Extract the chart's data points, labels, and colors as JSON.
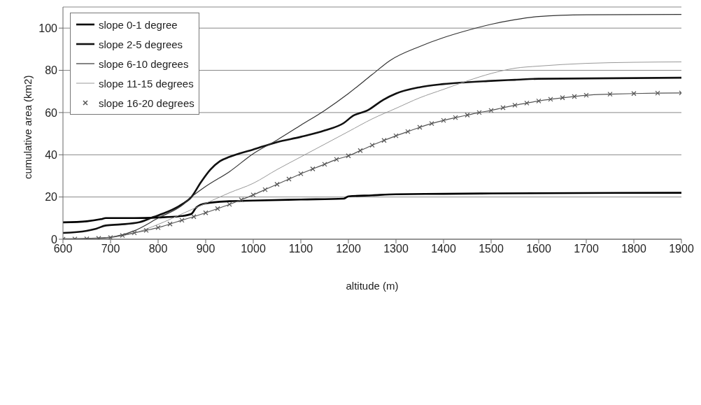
{
  "chart_data": {
    "type": "line",
    "xlabel": "altitude (m)",
    "ylabel": "cumulative area (km2)",
    "xlim": [
      600,
      1900
    ],
    "xticks": [
      600,
      700,
      800,
      900,
      1000,
      1100,
      1200,
      1300,
      1400,
      1500,
      1600,
      1700,
      1800,
      1900
    ],
    "ylim": [
      0,
      110
    ],
    "yticks": [
      0,
      20,
      40,
      60,
      80,
      100
    ],
    "grid": "y",
    "legend": "top left",
    "line_style": "solid",
    "series": [
      {
        "name": "slope 0-1 degree",
        "color": "#000000",
        "marker": "none",
        "x": [
          600,
          650,
          680,
          690,
          750,
          800,
          850,
          870,
          880,
          900,
          950,
          1000,
          1100,
          1190,
          1200,
          1250,
          1300,
          1400,
          1500,
          1900
        ],
        "values": [
          8,
          8.5,
          9.5,
          10,
          10,
          10.3,
          11,
          12,
          15,
          17,
          18,
          18.3,
          18.8,
          19.2,
          20.3,
          20.8,
          21.3,
          21.5,
          21.7,
          22
        ]
      },
      {
        "name": "slope 2-5 degrees",
        "color": "#111111",
        "marker": "none",
        "x": [
          600,
          650,
          670,
          690,
          720,
          760,
          790,
          820,
          850,
          870,
          890,
          910,
          930,
          950,
          1000,
          1050,
          1100,
          1150,
          1190,
          1210,
          1240,
          1273,
          1300,
          1350,
          1400,
          1500,
          1550,
          1600,
          1900
        ],
        "values": [
          3,
          4,
          5,
          6.5,
          7,
          8,
          10.5,
          13,
          16.5,
          20,
          27,
          33,
          37,
          39,
          42.5,
          46,
          48.5,
          51.5,
          55,
          58.5,
          61,
          66,
          69,
          72,
          73.5,
          75,
          75.5,
          76,
          76.5
        ]
      },
      {
        "name": "slope 6-10 degrees",
        "color": "#333333",
        "marker": "none",
        "x": [
          600,
          650,
          700,
          750,
          800,
          850,
          870,
          900,
          950,
          1000,
          1050,
          1100,
          1150,
          1200,
          1250,
          1287,
          1350,
          1400,
          1450,
          1500,
          1550,
          1600,
          1700,
          1900
        ],
        "values": [
          0.2,
          0.4,
          1,
          4,
          10,
          16,
          20,
          25,
          32,
          40.5,
          47,
          54,
          61,
          69,
          78,
          84.6,
          91.3,
          95.5,
          98.9,
          101.8,
          104,
          105.5,
          106.3,
          106.5
        ]
      },
      {
        "name": "slope 11-15 degrees",
        "color": "#999999",
        "marker": "none",
        "x": [
          600,
          650,
          700,
          750,
          800,
          850,
          900,
          950,
          1000,
          1050,
          1100,
          1150,
          1200,
          1250,
          1300,
          1350,
          1400,
          1450,
          1500,
          1550,
          1600,
          1700,
          1800,
          1900
        ],
        "values": [
          0,
          0.3,
          1,
          3,
          7,
          12,
          17,
          22,
          26.5,
          33,
          39,
          45,
          51,
          57,
          62,
          67,
          71,
          75,
          78.5,
          81,
          82,
          83.3,
          83.8,
          84
        ]
      },
      {
        "name": "slope 16-20 degrees",
        "color": "#555555",
        "marker": "cross",
        "x": [
          600,
          625,
          650,
          675,
          700,
          725,
          750,
          775,
          800,
          825,
          850,
          875,
          900,
          925,
          950,
          975,
          1000,
          1025,
          1050,
          1075,
          1100,
          1125,
          1150,
          1175,
          1200,
          1225,
          1250,
          1275,
          1300,
          1325,
          1350,
          1375,
          1400,
          1425,
          1450,
          1475,
          1500,
          1525,
          1550,
          1575,
          1600,
          1625,
          1650,
          1675,
          1700,
          1750,
          1800,
          1850,
          1900
        ],
        "values": [
          0,
          0.1,
          0.2,
          0.4,
          0.8,
          1.8,
          3,
          4.2,
          5.5,
          7.2,
          9,
          10.7,
          12.5,
          14.5,
          16.5,
          18.7,
          21,
          23.5,
          26,
          28.5,
          31,
          33.3,
          35.5,
          37.8,
          39.5,
          42,
          44.5,
          46.8,
          49,
          51,
          53,
          54.8,
          56.3,
          57.6,
          58.8,
          60,
          61,
          62.3,
          63.5,
          64.5,
          65.5,
          66.3,
          67,
          67.6,
          68.2,
          68.7,
          69,
          69.2,
          69.3
        ]
      }
    ]
  }
}
